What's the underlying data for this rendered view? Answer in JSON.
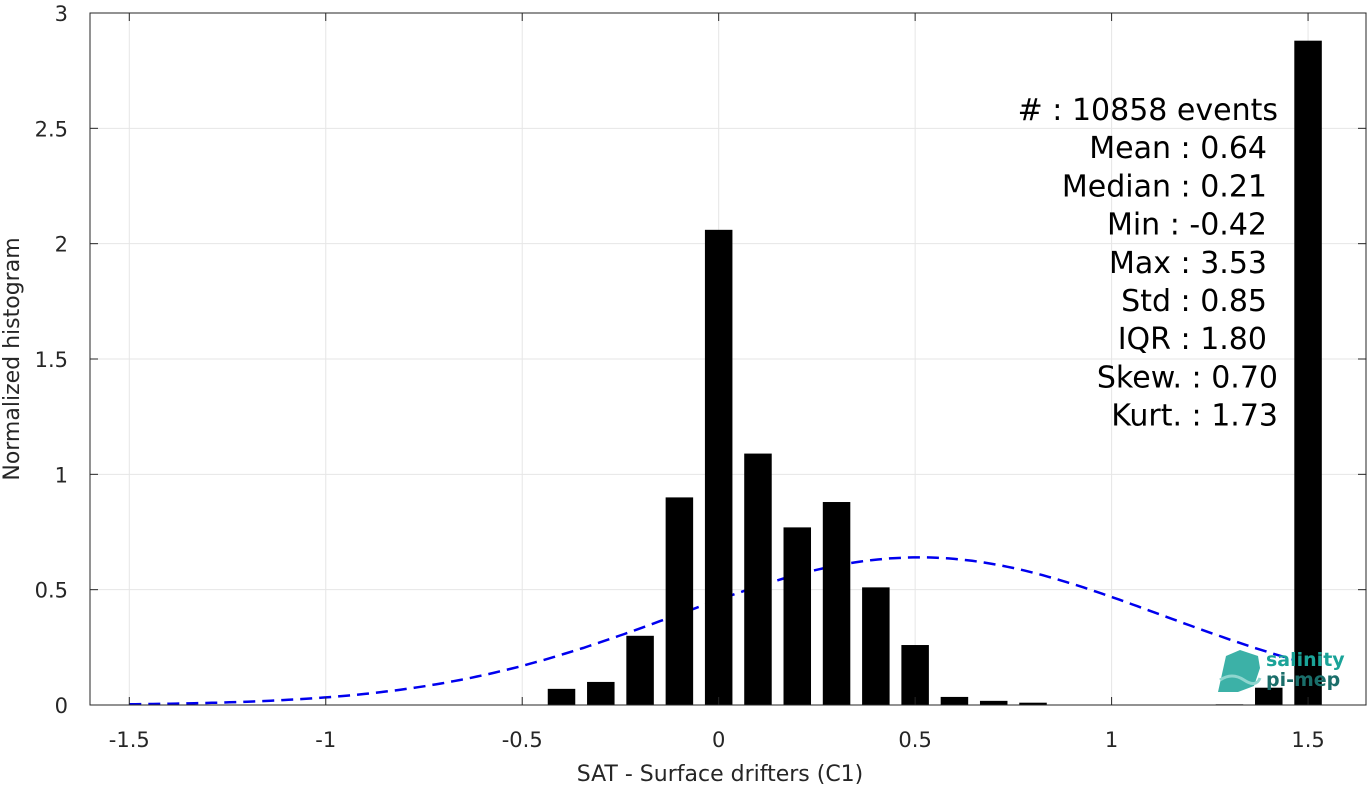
{
  "chart_data": {
    "type": "bar",
    "xlabel": "SAT - Surface drifters (C1)",
    "ylabel": "Normalized histogram",
    "xlim": [
      -1.6,
      1.65
    ],
    "ylim": [
      0,
      3
    ],
    "xticks": [
      -1.5,
      -1,
      -0.5,
      0,
      0.5,
      1,
      1.5
    ],
    "xtick_labels": [
      "-1.5",
      "-1",
      "-0.5",
      "0",
      "0.5",
      "1",
      "1.5"
    ],
    "yticks": [
      0,
      0.5,
      1,
      1.5,
      2,
      2.5,
      3
    ],
    "ytick_labels": [
      "0",
      "0.5",
      "1",
      "1.5",
      "2",
      "2.5",
      "3"
    ],
    "grid": true,
    "bar_color": "#000000",
    "bars": [
      {
        "x": -0.4,
        "y": 0.07
      },
      {
        "x": -0.3,
        "y": 0.1
      },
      {
        "x": -0.2,
        "y": 0.3
      },
      {
        "x": -0.1,
        "y": 0.9
      },
      {
        "x": 0.0,
        "y": 2.06
      },
      {
        "x": 0.1,
        "y": 1.09
      },
      {
        "x": 0.2,
        "y": 0.77
      },
      {
        "x": 0.3,
        "y": 0.88
      },
      {
        "x": 0.4,
        "y": 0.51
      },
      {
        "x": 0.5,
        "y": 0.26
      },
      {
        "x": 0.6,
        "y": 0.035
      },
      {
        "x": 0.7,
        "y": 0.018
      },
      {
        "x": 0.8,
        "y": 0.01
      },
      {
        "x": 1.3,
        "y": 0.003
      },
      {
        "x": 1.4,
        "y": 0.075
      },
      {
        "x": 1.5,
        "y": 2.88
      }
    ],
    "bar_width": 0.07,
    "fit_curve": {
      "type": "normal",
      "mean": 0.51,
      "peak": 0.64,
      "sigma": 0.62,
      "x_range": [
        -1.5,
        1.5
      ],
      "color": "#0000ee",
      "style": "dashed"
    },
    "stats_lines": [
      "#  : 10858 events",
      "Mean : 0.64",
      "Median : 0.21",
      "Min : -0.42",
      "Max : 3.53",
      "Std : 0.85",
      "IQR : 1.80",
      "Skew. : 0.70",
      "Kurt. : 1.73"
    ]
  },
  "logo": {
    "line1": "salinity",
    "line2": "pi-mep",
    "color": "#1aa398"
  }
}
